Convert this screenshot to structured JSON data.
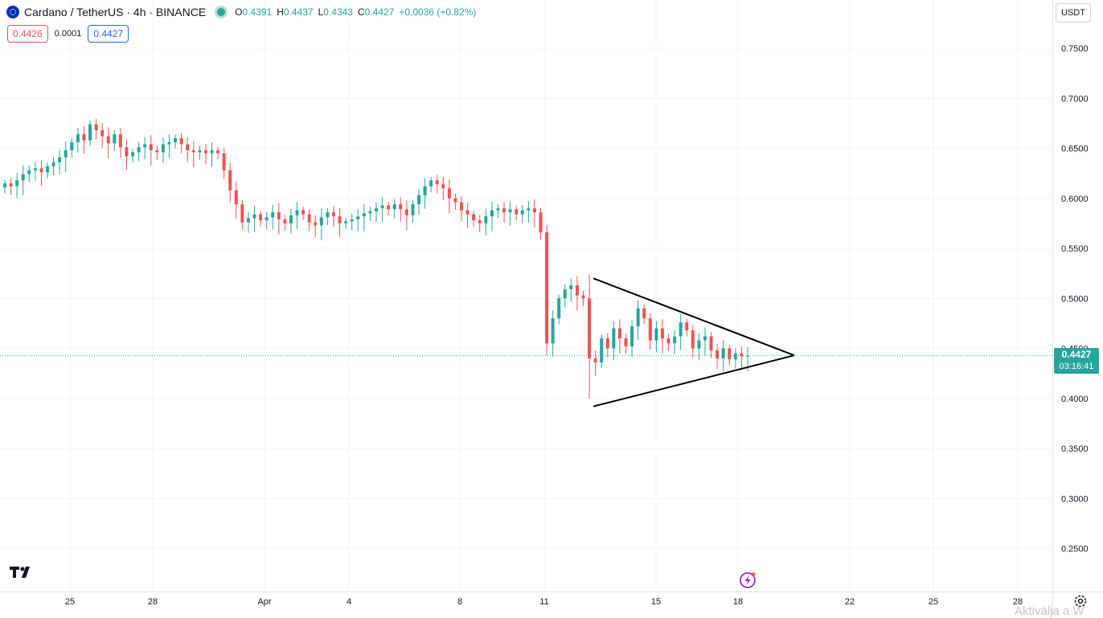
{
  "header": {
    "title": "Cardano / TetherUS · 4h · BINANCE",
    "ohlc": [
      {
        "k": "O",
        "v": "0.4391"
      },
      {
        "k": "H",
        "v": "0.4437"
      },
      {
        "k": "L",
        "v": "0.4343"
      },
      {
        "k": "C",
        "v": "0.4427"
      }
    ],
    "change": "+0.0036 (+0.82%)"
  },
  "quote": {
    "sell": "0.4426",
    "spread": "0.0001",
    "buy": "0.4427"
  },
  "currency": "USDT",
  "last_price": {
    "price": "0.4427",
    "countdown": "03:16:41"
  },
  "watermark": "Aktiválja a W",
  "colors": {
    "up": "#26a69a",
    "down": "#ef5350",
    "grid": "#f0f3fa",
    "axis_text": "#131722",
    "trendline": "#000000"
  },
  "icons": {
    "logo": "tradingview-logo-icon",
    "flash": "flash-icon",
    "settings": "settings-gear-icon"
  },
  "chart_data": {
    "type": "candlestick",
    "timeframe": "4h",
    "y_ticks": [
      "0.7500",
      "0.7000",
      "0.6500",
      "0.6000",
      "0.5500",
      "0.5000",
      "0.4500",
      "0.4000",
      "0.3500",
      "0.3000",
      "0.2500"
    ],
    "x_ticks": [
      "25",
      "28",
      "Apr",
      "4",
      "8",
      "11",
      "15",
      "18",
      "22",
      "25",
      "28"
    ],
    "ylim": [
      0.2,
      0.8
    ],
    "last_price": 0.4427,
    "series": [
      {
        "name": "Cardano / TetherUS",
        "close_path": [
          0.615,
          0.612,
          0.618,
          0.624,
          0.628,
          0.63,
          0.626,
          0.632,
          0.636,
          0.641,
          0.648,
          0.656,
          0.664,
          0.658,
          0.674,
          0.668,
          0.662,
          0.655,
          0.664,
          0.651,
          0.642,
          0.646,
          0.651,
          0.654,
          0.648,
          0.646,
          0.654,
          0.656,
          0.66,
          0.654,
          0.648,
          0.646,
          0.648,
          0.645,
          0.648,
          0.645,
          0.628,
          0.608,
          0.594,
          0.576,
          0.58,
          0.584,
          0.578,
          0.581,
          0.586,
          0.579,
          0.575,
          0.583,
          0.588,
          0.584,
          0.576,
          0.573,
          0.581,
          0.586,
          0.582,
          0.575,
          0.577,
          0.579,
          0.582,
          0.585,
          0.587,
          0.59,
          0.593,
          0.589,
          0.594,
          0.589,
          0.583,
          0.594,
          0.603,
          0.612,
          0.618,
          0.614,
          0.61,
          0.6,
          0.596,
          0.588,
          0.584,
          0.578,
          0.575,
          0.582,
          0.588,
          0.59,
          0.586,
          0.589,
          0.584,
          0.588,
          0.59,
          0.586,
          0.566,
          0.455,
          0.48,
          0.5,
          0.509,
          0.513,
          0.503,
          0.5,
          0.44,
          0.436,
          0.46,
          0.45,
          0.47,
          0.46,
          0.452,
          0.472,
          0.49,
          0.48,
          0.458,
          0.47,
          0.46,
          0.455,
          0.462,
          0.476,
          0.468,
          0.45,
          0.458,
          0.462,
          0.448,
          0.44,
          0.45,
          0.439,
          0.445,
          0.442,
          0.4427
        ]
      }
    ],
    "triangle_pattern": {
      "upper": {
        "from": {
          "label": "13",
          "price": 0.52
        },
        "to": {
          "label": "20",
          "price": 0.443
        }
      },
      "lower": {
        "from": {
          "label": "13",
          "price": 0.392
        },
        "to": {
          "label": "20",
          "price": 0.443
        }
      }
    },
    "grid": true
  }
}
